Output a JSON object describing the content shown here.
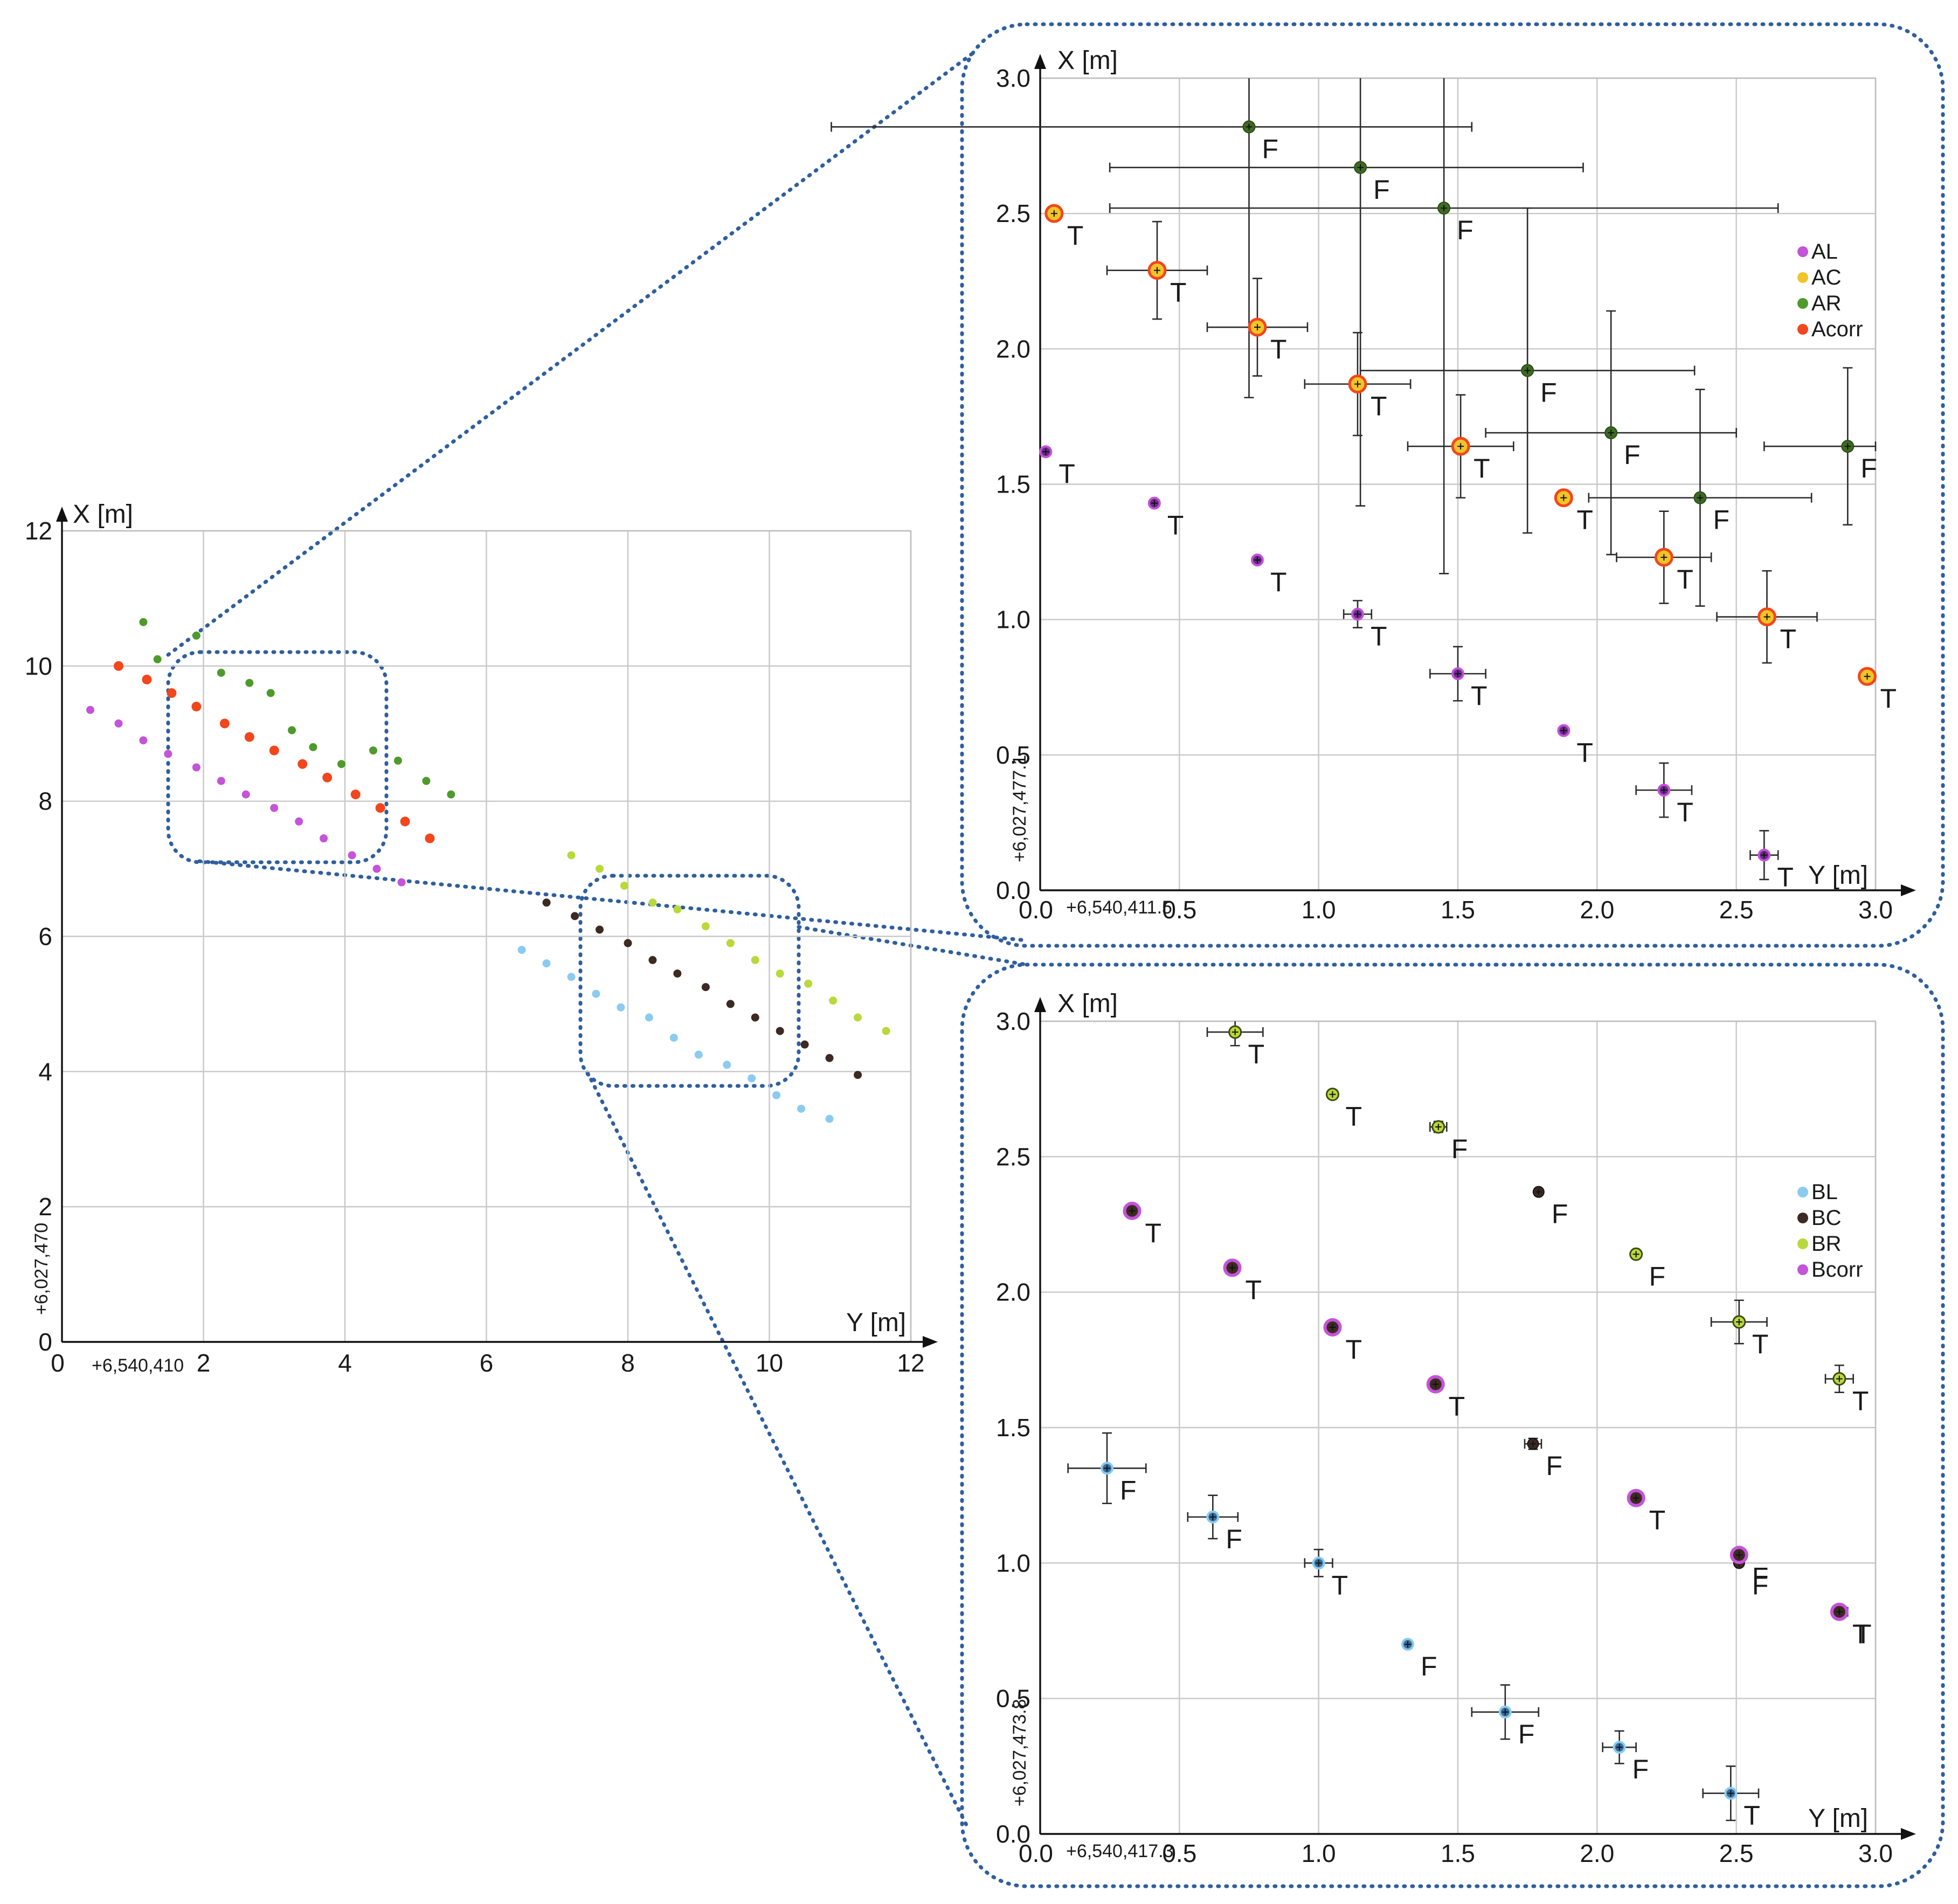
{
  "colors": {
    "AL": "#c454d8",
    "AC": "#f2c428",
    "AR": "#4f9a2c",
    "Acorr": "#f2461c",
    "AR_dark": "#3e6b22",
    "AL_dark": "#6a2c8a",
    "BL": "#8ccbf0",
    "BC": "#3d2a22",
    "BR": "#b9d93a",
    "Bcorr": "#c454d8",
    "BL_dark": "#3a6f9e",
    "frame": "#2f5f9e"
  },
  "chart_data": [
    {
      "type": "scatter",
      "id": "overview",
      "title": "",
      "xlabel": "Y [m]",
      "ylabel": "X [m]",
      "x_offset_label": "+6,540,410",
      "y_offset_label": "+6,027,470",
      "xlim": [
        0,
        12
      ],
      "ylim": [
        0,
        12
      ],
      "xticks": [
        "0",
        "2",
        "4",
        "6",
        "8",
        "10",
        "12"
      ],
      "yticks": [
        "0",
        "2",
        "4",
        "6",
        "8",
        "10",
        "12"
      ],
      "grid": true,
      "zoom_boxes": [
        {
          "name": "A",
          "y_range": [
            1.5,
            4.6
          ],
          "x_range": [
            7.1,
            10.2
          ]
        },
        {
          "name": "B",
          "y_range": [
            7.3,
            10.4
          ],
          "x_range": [
            3.8,
            6.9
          ]
        }
      ],
      "series": [
        {
          "name": "AR",
          "points": [
            [
              1.15,
              10.65
            ],
            [
              1.35,
              10.1
            ],
            [
              1.9,
              10.45
            ],
            [
              2.25,
              9.9
            ],
            [
              2.65,
              9.75
            ],
            [
              2.95,
              9.6
            ],
            [
              3.25,
              9.05
            ],
            [
              3.55,
              8.8
            ],
            [
              3.95,
              8.55
            ],
            [
              4.4,
              8.75
            ],
            [
              4.75,
              8.6
            ],
            [
              5.15,
              8.3
            ],
            [
              5.5,
              8.1
            ]
          ]
        },
        {
          "name": "Acorr",
          "points": [
            [
              0.8,
              10.0
            ],
            [
              1.2,
              9.8
            ],
            [
              1.55,
              9.6
            ],
            [
              1.9,
              9.4
            ],
            [
              2.3,
              9.15
            ],
            [
              2.65,
              8.95
            ],
            [
              3.0,
              8.75
            ],
            [
              3.4,
              8.55
            ],
            [
              3.75,
              8.35
            ],
            [
              4.15,
              8.1
            ],
            [
              4.5,
              7.9
            ],
            [
              4.85,
              7.7
            ],
            [
              5.2,
              7.45
            ]
          ]
        },
        {
          "name": "AL",
          "points": [
            [
              0.4,
              9.35
            ],
            [
              0.8,
              9.15
            ],
            [
              1.15,
              8.9
            ],
            [
              1.5,
              8.7
            ],
            [
              1.9,
              8.5
            ],
            [
              2.25,
              8.3
            ],
            [
              2.6,
              8.1
            ],
            [
              3.0,
              7.9
            ],
            [
              3.35,
              7.7
            ],
            [
              3.7,
              7.45
            ],
            [
              4.1,
              7.2
            ],
            [
              4.45,
              7.0
            ],
            [
              4.8,
              6.8
            ]
          ]
        },
        {
          "name": "BR",
          "points": [
            [
              7.2,
              7.2
            ],
            [
              7.6,
              7.0
            ],
            [
              7.95,
              6.75
            ],
            [
              8.35,
              6.5
            ],
            [
              8.7,
              6.4
            ],
            [
              9.1,
              6.15
            ],
            [
              9.45,
              5.9
            ],
            [
              9.8,
              5.65
            ],
            [
              10.15,
              5.45
            ],
            [
              10.55,
              5.3
            ],
            [
              10.9,
              5.05
            ],
            [
              11.25,
              4.8
            ],
            [
              11.65,
              4.6
            ]
          ]
        },
        {
          "name": "BC",
          "points": [
            [
              6.85,
              6.5
            ],
            [
              7.25,
              6.3
            ],
            [
              7.6,
              6.1
            ],
            [
              8.0,
              5.9
            ],
            [
              8.35,
              5.65
            ],
            [
              8.7,
              5.45
            ],
            [
              9.1,
              5.25
            ],
            [
              9.45,
              5.0
            ],
            [
              9.8,
              4.8
            ],
            [
              10.15,
              4.6
            ],
            [
              10.5,
              4.4
            ],
            [
              10.85,
              4.2
            ],
            [
              11.25,
              3.95
            ]
          ]
        },
        {
          "name": "BL",
          "points": [
            [
              6.5,
              5.8
            ],
            [
              6.85,
              5.6
            ],
            [
              7.2,
              5.4
            ],
            [
              7.55,
              5.15
            ],
            [
              7.9,
              4.95
            ],
            [
              8.3,
              4.8
            ],
            [
              8.65,
              4.5
            ],
            [
              9.0,
              4.25
            ],
            [
              9.4,
              4.1
            ],
            [
              9.75,
              3.9
            ],
            [
              10.1,
              3.65
            ],
            [
              10.45,
              3.45
            ],
            [
              10.85,
              3.3
            ]
          ]
        }
      ]
    },
    {
      "type": "scatter",
      "id": "zoom-A",
      "xlabel": "Y [m]",
      "ylabel": "X [m]",
      "x_offset_label": "+6,540,411.5",
      "y_offset_label": "+6,027,477.1",
      "xlim": [
        0,
        3
      ],
      "ylim": [
        0,
        3
      ],
      "xticks": [
        "0.0",
        "0.5",
        "1.0",
        "1.5",
        "2.0",
        "2.5",
        "3.0"
      ],
      "yticks": [
        "0.0",
        "0.5",
        "1.0",
        "1.5",
        "2.0",
        "2.5",
        "3.0"
      ],
      "grid": true,
      "legend": {
        "position": "right",
        "entries": [
          "AL",
          "AC",
          "AR",
          "Acorr"
        ]
      },
      "points": [
        {
          "series": "AR",
          "y": 0.75,
          "x": 2.82,
          "ey": 1.0,
          "ex_low": 1.5,
          "ex_high": 0.8,
          "label": "F"
        },
        {
          "series": "AR",
          "y": 1.15,
          "x": 2.67,
          "ey": 1.25,
          "ex_low": 0.9,
          "ex_high": 0.8,
          "label": "F"
        },
        {
          "series": "AR",
          "y": 1.45,
          "x": 2.52,
          "ey": 1.35,
          "ex_low": 1.2,
          "ex_high": 1.2,
          "label": "F"
        },
        {
          "series": "AR",
          "y": 1.75,
          "x": 1.92,
          "ey": 0.6,
          "ex_low": 0.6,
          "ex_high": 0.6,
          "label": "F"
        },
        {
          "series": "AR",
          "y": 2.05,
          "x": 1.69,
          "ey": 0.45,
          "ex_low": 0.45,
          "ex_high": 0.45,
          "label": "F"
        },
        {
          "series": "AR",
          "y": 2.37,
          "x": 1.45,
          "ey": 0.4,
          "ex_low": 0.4,
          "ex_high": 0.4,
          "label": "F"
        },
        {
          "series": "AR",
          "y": 2.9,
          "x": 1.64,
          "ey": 0.29,
          "ex_low": 0.3,
          "ex_high": 0.1,
          "label": "F"
        },
        {
          "series": "Acorr",
          "y": 0.05,
          "x": 2.5,
          "ey": 0.0,
          "ex_low": 0.0,
          "ex_high": 0.0,
          "label": "T"
        },
        {
          "series": "Acorr",
          "y": 0.42,
          "x": 2.29,
          "ey": 0.18,
          "ex_low": 0.18,
          "ex_high": 0.18,
          "label": "T"
        },
        {
          "series": "Acorr",
          "y": 0.78,
          "x": 2.08,
          "ey": 0.18,
          "ex_low": 0.18,
          "ex_high": 0.18,
          "label": "T"
        },
        {
          "series": "Acorr",
          "y": 1.14,
          "x": 1.87,
          "ey": 0.19,
          "ex_low": 0.19,
          "ex_high": 0.19,
          "label": "T"
        },
        {
          "series": "Acorr",
          "y": 1.51,
          "x": 1.64,
          "ey": 0.19,
          "ex_low": 0.19,
          "ex_high": 0.19,
          "label": "T"
        },
        {
          "series": "Acorr",
          "y": 1.88,
          "x": 1.45,
          "ey": 0.0,
          "ex_low": 0.0,
          "ex_high": 0.0,
          "label": "T"
        },
        {
          "series": "Acorr",
          "y": 2.24,
          "x": 1.23,
          "ey": 0.17,
          "ex_low": 0.17,
          "ex_high": 0.17,
          "label": "T"
        },
        {
          "series": "Acorr",
          "y": 2.61,
          "x": 1.01,
          "ey": 0.17,
          "ex_low": 0.18,
          "ex_high": 0.18,
          "label": "T"
        },
        {
          "series": "Acorr",
          "y": 2.97,
          "x": 0.79,
          "ey": 0.0,
          "ex_low": 0.0,
          "ex_high": 0.0,
          "label": "T"
        },
        {
          "series": "AL",
          "y": 0.02,
          "x": 1.62,
          "ey": 0.0,
          "ex_low": 0.0,
          "ex_high": 0.0,
          "label": "T"
        },
        {
          "series": "AL",
          "y": 0.41,
          "x": 1.43,
          "ey": 0.0,
          "ex_low": 0.0,
          "ex_high": 0.0,
          "label": "T"
        },
        {
          "series": "AL",
          "y": 0.78,
          "x": 1.22,
          "ey": 0.0,
          "ex_low": 0.0,
          "ex_high": 0.0,
          "label": "T"
        },
        {
          "series": "AL",
          "y": 1.14,
          "x": 1.02,
          "ey": 0.05,
          "ex_low": 0.05,
          "ex_high": 0.05,
          "label": "T"
        },
        {
          "series": "AL",
          "y": 1.5,
          "x": 0.8,
          "ey": 0.1,
          "ex_low": 0.1,
          "ex_high": 0.1,
          "label": "T"
        },
        {
          "series": "AL",
          "y": 1.88,
          "x": 0.59,
          "ey": 0.0,
          "ex_low": 0.0,
          "ex_high": 0.0,
          "label": "T"
        },
        {
          "series": "AL",
          "y": 2.24,
          "x": 0.37,
          "ey": 0.1,
          "ex_low": 0.1,
          "ex_high": 0.1,
          "label": "T"
        },
        {
          "series": "AL",
          "y": 2.6,
          "x": 0.13,
          "ey": 0.09,
          "ex_low": 0.05,
          "ex_high": 0.05,
          "label": "T"
        }
      ]
    },
    {
      "type": "scatter",
      "id": "zoom-B",
      "xlabel": "Y [m]",
      "ylabel": "X [m]",
      "x_offset_label": "+6,540,417.3",
      "y_offset_label": "+6,027,473.8",
      "xlim": [
        0,
        3
      ],
      "ylim": [
        0,
        3
      ],
      "xticks": [
        "0.0",
        "0.5",
        "1.0",
        "1.5",
        "2.0",
        "2.5",
        "3.0"
      ],
      "yticks": [
        "0.0",
        "0.5",
        "1.0",
        "1.5",
        "2.0",
        "2.5",
        "3.0"
      ],
      "grid": true,
      "legend": {
        "position": "right",
        "entries": [
          "BL",
          "BC",
          "BR",
          "Bcorr"
        ]
      },
      "points": [
        {
          "series": "BR",
          "y": 0.7,
          "x": 2.96,
          "ey": 0.05,
          "ex_low": 0.1,
          "ex_high": 0.1,
          "label": "T"
        },
        {
          "series": "BR",
          "y": 1.05,
          "x": 2.73,
          "ey": 0.0,
          "ex_low": 0.0,
          "ex_high": 0.0,
          "label": "T"
        },
        {
          "series": "BR",
          "y": 1.43,
          "x": 2.61,
          "ey": 0.02,
          "ex_low": 0.03,
          "ex_high": 0.03,
          "label": "F"
        },
        {
          "series": "BR",
          "y": 2.14,
          "x": 2.14,
          "ey": 0.0,
          "ex_low": 0.0,
          "ex_high": 0.0,
          "label": "F"
        },
        {
          "series": "BR",
          "y": 2.51,
          "x": 1.89,
          "ey": 0.08,
          "ex_low": 0.1,
          "ex_high": 0.1,
          "label": "T"
        },
        {
          "series": "BR",
          "y": 2.87,
          "x": 1.68,
          "ey": 0.05,
          "ex_low": 0.05,
          "ex_high": 0.05,
          "label": "T"
        },
        {
          "series": "BC",
          "y": 1.79,
          "x": 2.37,
          "ey": 0.0,
          "ex_low": 0.0,
          "ex_high": 0.0,
          "label": "F"
        },
        {
          "series": "BC",
          "y": 1.77,
          "x": 1.44,
          "ey": 0.02,
          "ex_low": 0.03,
          "ex_high": 0.03,
          "label": "F"
        },
        {
          "series": "BC",
          "y": 2.51,
          "x": 1.0,
          "ey": 0.0,
          "ex_low": 0.0,
          "ex_high": 0.0,
          "label": "F"
        },
        {
          "series": "BC",
          "y": 2.88,
          "x": 0.82,
          "ey": 0.0,
          "ex_low": 0.02,
          "ex_high": 0.02,
          "label": "T"
        },
        {
          "series": "Bcorr",
          "y": 0.33,
          "x": 2.3,
          "ey": 0.0,
          "ex_low": 0.0,
          "ex_high": 0.0,
          "label": "T"
        },
        {
          "series": "Bcorr",
          "y": 0.69,
          "x": 2.09,
          "ey": 0.02,
          "ex_low": 0.02,
          "ex_high": 0.02,
          "label": "T"
        },
        {
          "series": "Bcorr",
          "y": 1.05,
          "x": 1.87,
          "ey": 0.0,
          "ex_low": 0.0,
          "ex_high": 0.0,
          "label": "T"
        },
        {
          "series": "Bcorr",
          "y": 1.42,
          "x": 1.66,
          "ey": 0.02,
          "ex_low": 0.02,
          "ex_high": 0.02,
          "label": "T"
        },
        {
          "series": "Bcorr",
          "y": 2.14,
          "x": 1.24,
          "ey": 0.0,
          "ex_low": 0.0,
          "ex_high": 0.0,
          "label": "T"
        },
        {
          "series": "Bcorr",
          "y": 2.51,
          "x": 1.03,
          "ey": 0.0,
          "ex_low": 0.0,
          "ex_high": 0.0,
          "label": "F"
        },
        {
          "series": "Bcorr",
          "y": 2.87,
          "x": 0.82,
          "ey": 0.0,
          "ex_low": 0.0,
          "ex_high": 0.0,
          "label": "T"
        },
        {
          "series": "BL",
          "y": 0.24,
          "x": 1.35,
          "ey": 0.13,
          "ex_low": 0.14,
          "ex_high": 0.14,
          "label": "F"
        },
        {
          "series": "BL",
          "y": 0.62,
          "x": 1.17,
          "ey": 0.08,
          "ex_low": 0.09,
          "ex_high": 0.09,
          "label": "F"
        },
        {
          "series": "BL",
          "y": 1.0,
          "x": 1.0,
          "ey": 0.05,
          "ex_low": 0.05,
          "ex_high": 0.05,
          "label": "T"
        },
        {
          "series": "BL",
          "y": 1.32,
          "x": 0.7,
          "ey": 0.0,
          "ex_low": 0.0,
          "ex_high": 0.0,
          "label": "F"
        },
        {
          "series": "BL",
          "y": 1.67,
          "x": 0.45,
          "ey": 0.1,
          "ex_low": 0.12,
          "ex_high": 0.12,
          "label": "F"
        },
        {
          "series": "BL",
          "y": 2.08,
          "x": 0.32,
          "ey": 0.06,
          "ex_low": 0.06,
          "ex_high": 0.06,
          "label": "F"
        },
        {
          "series": "BL",
          "y": 2.48,
          "x": 0.15,
          "ey": 0.1,
          "ex_low": 0.1,
          "ex_high": 0.1,
          "label": "T"
        }
      ]
    }
  ]
}
